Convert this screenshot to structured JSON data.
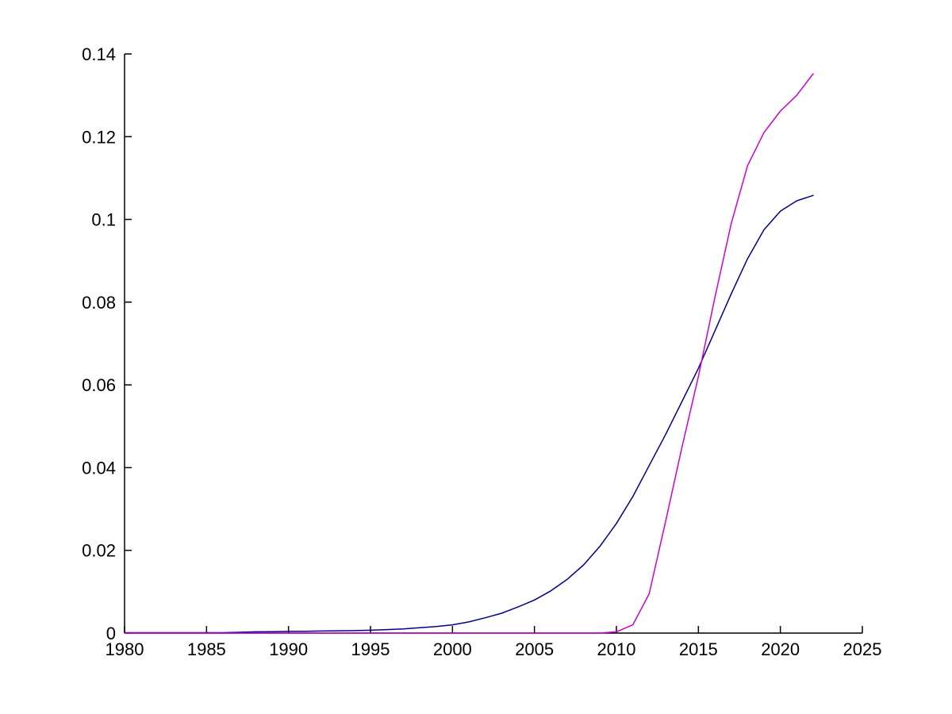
{
  "figure": {
    "background": "#ffffff"
  },
  "chart_data": {
    "type": "line",
    "title": "",
    "xlabel": "",
    "ylabel": "",
    "grid": false,
    "legend": "none",
    "box": "off",
    "axis_color": "#000000",
    "tick_label_color": "#000000",
    "xlim": [
      1980,
      2025
    ],
    "ylim": [
      0,
      0.14
    ],
    "xticks": [
      1980,
      1985,
      1990,
      1995,
      2000,
      2005,
      2010,
      2015,
      2020,
      2025
    ],
    "xtick_labels": [
      "1980",
      "1985",
      "1990",
      "1995",
      "2000",
      "2005",
      "2010",
      "2015",
      "2020",
      "2025"
    ],
    "yticks": [
      0,
      0.02,
      0.04,
      0.06,
      0.08,
      0.1,
      0.12,
      0.14
    ],
    "ytick_labels": [
      "0",
      "0.02",
      "0.04",
      "0.06",
      "0.08",
      "0.1",
      "0.12",
      "0.14"
    ],
    "x": [
      1980,
      1981,
      1982,
      1983,
      1984,
      1985,
      1986,
      1987,
      1988,
      1989,
      1990,
      1991,
      1992,
      1993,
      1994,
      1995,
      1996,
      1997,
      1998,
      1999,
      2000,
      2001,
      2002,
      2003,
      2004,
      2005,
      2006,
      2007,
      2008,
      2009,
      2010,
      2011,
      2012,
      2013,
      2014,
      2015,
      2016,
      2017,
      2018,
      2019,
      2020,
      2021,
      2022
    ],
    "series": [
      {
        "name": "blue-curve",
        "color": "#00008B",
        "values": [
          0.0001,
          0.0001,
          0.0001,
          0.0001,
          0.0001,
          0.0001,
          0.0001,
          0.0002,
          0.0003,
          0.00035,
          0.0004,
          0.00045,
          0.0005,
          0.00055,
          0.0006,
          0.0007,
          0.00085,
          0.001,
          0.0013,
          0.0016,
          0.002,
          0.0027,
          0.0037,
          0.0048,
          0.0063,
          0.008,
          0.0102,
          0.013,
          0.0165,
          0.021,
          0.0265,
          0.033,
          0.0405,
          0.048,
          0.056,
          0.064,
          0.073,
          0.082,
          0.0905,
          0.0975,
          0.102,
          0.1045,
          0.1058
        ]
      },
      {
        "name": "magenta-curve",
        "color": "#CC00CC",
        "values": [
          0,
          0,
          0,
          0,
          0,
          0,
          0,
          0,
          0,
          0,
          0,
          0,
          0,
          0,
          0,
          0,
          0,
          0,
          0,
          0,
          0,
          0,
          0,
          0,
          0,
          0,
          0,
          0,
          0,
          0,
          0.0003,
          0.002,
          0.0095,
          0.027,
          0.045,
          0.062,
          0.081,
          0.099,
          0.113,
          0.121,
          0.1262,
          0.13,
          0.1352
        ]
      }
    ]
  }
}
